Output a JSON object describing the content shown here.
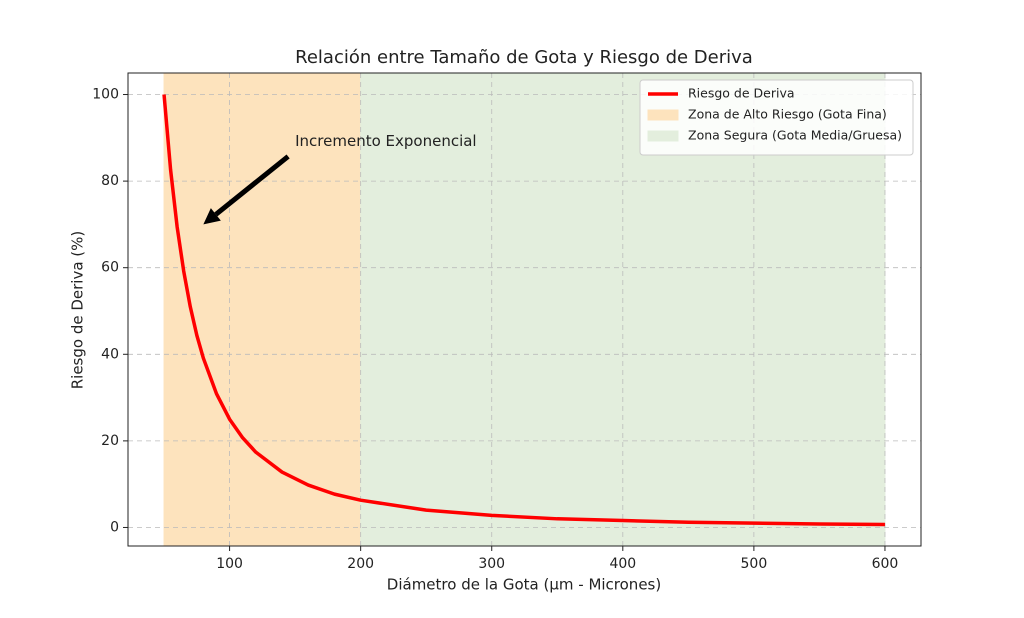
{
  "chart_data": {
    "type": "line",
    "title": "Relación entre Tamaño de Gota y Riesgo de Deriva",
    "x_label": "Diámetro de la Gota (µm - Micrones)",
    "y_label": "Riesgo de Deriva (%)",
    "x": [
      50,
      55,
      60,
      65,
      70,
      75,
      80,
      90,
      100,
      110,
      120,
      140,
      160,
      180,
      200,
      250,
      300,
      350,
      400,
      450,
      500,
      550,
      600
    ],
    "series": [
      {
        "name": "Riesgo de Deriva",
        "color": "#ff0000",
        "values": [
          100,
          82.6,
          69.4,
          59.2,
          51.0,
          44.4,
          39.1,
          30.9,
          25,
          20.7,
          17.4,
          12.8,
          9.8,
          7.7,
          6.3,
          4,
          2.8,
          2.0,
          1.6,
          1.2,
          1,
          0.8,
          0.7
        ]
      }
    ],
    "spans": [
      {
        "name": "Zona de Alto Riesgo (Gota Fina)",
        "x0": 50,
        "x1": 200,
        "color": "#fde3bd"
      },
      {
        "name": "Zona Segura (Gota Media/Gruesa)",
        "x0": 200,
        "x1": 600,
        "color": "#e3eedd"
      }
    ],
    "annotation": {
      "text": "Incremento Exponencial",
      "xy": [
        80,
        70
      ],
      "xytext": [
        150,
        85
      ]
    },
    "xlim": [
      22.5,
      627.5
    ],
    "ylim": [
      -4.28,
      104.97
    ],
    "xticks": [
      100,
      200,
      300,
      400,
      500,
      600
    ],
    "yticks": [
      0,
      20,
      40,
      60,
      80,
      100
    ],
    "grid": true,
    "legend": "upper right"
  }
}
